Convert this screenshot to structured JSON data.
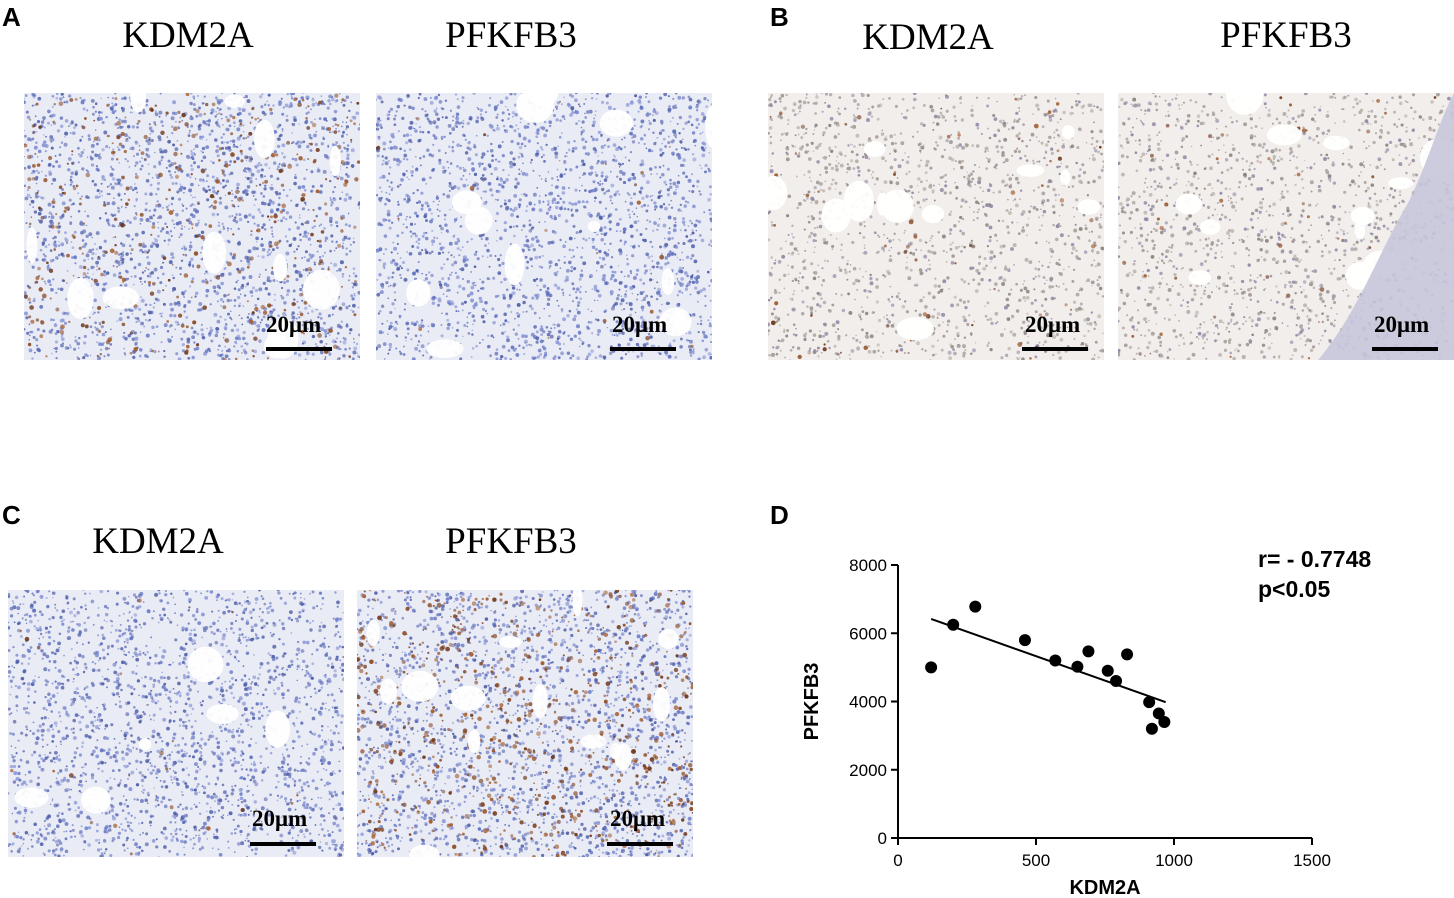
{
  "panels": {
    "A": {
      "letter": "A",
      "left": {
        "title": "KDM2A",
        "scale": "20μm",
        "tissue": "brown-mixed"
      },
      "right": {
        "title": "PFKFB3",
        "scale": "20μm",
        "tissue": "blue"
      }
    },
    "B": {
      "letter": "B",
      "left": {
        "title": "KDM2A",
        "scale": "20μm",
        "tissue": "pale"
      },
      "right": {
        "title": "PFKFB3",
        "scale": "20μm",
        "tissue": "pale-bone"
      }
    },
    "C": {
      "letter": "C",
      "left": {
        "title": "KDM2A",
        "scale": "20μm",
        "tissue": "blue"
      },
      "right": {
        "title": "PFKFB3",
        "scale": "20μm",
        "tissue": "brown-strong"
      }
    },
    "D": {
      "letter": "D"
    }
  },
  "colors": {
    "hematoxylin": "#6a7cc8",
    "dab_brown": "#8a4a22",
    "background_tissue": "#eeeef4",
    "bone": "#c8c6dc"
  },
  "chart_data": {
    "type": "scatter",
    "xlabel": "KDM2A",
    "ylabel": "PFKFB3",
    "xlim": [
      0,
      1500
    ],
    "ylim": [
      0,
      8000
    ],
    "x_ticks": [
      0,
      500,
      1000,
      1500
    ],
    "y_ticks": [
      0,
      2000,
      4000,
      6000,
      8000
    ],
    "points": [
      {
        "x": 120,
        "y": 5000
      },
      {
        "x": 200,
        "y": 6250
      },
      {
        "x": 280,
        "y": 6780
      },
      {
        "x": 460,
        "y": 5800
      },
      {
        "x": 570,
        "y": 5200
      },
      {
        "x": 650,
        "y": 5020
      },
      {
        "x": 690,
        "y": 5470
      },
      {
        "x": 760,
        "y": 4900
      },
      {
        "x": 790,
        "y": 4600
      },
      {
        "x": 830,
        "y": 5380
      },
      {
        "x": 910,
        "y": 3980
      },
      {
        "x": 920,
        "y": 3200
      },
      {
        "x": 945,
        "y": 3650
      },
      {
        "x": 965,
        "y": 3400
      }
    ],
    "fit_line": {
      "x1": 120,
      "y1": 6420,
      "x2": 970,
      "y2": 3980
    },
    "annotation": {
      "r": "r= - 0.7748",
      "p": "p<0.05"
    },
    "grid": false
  }
}
